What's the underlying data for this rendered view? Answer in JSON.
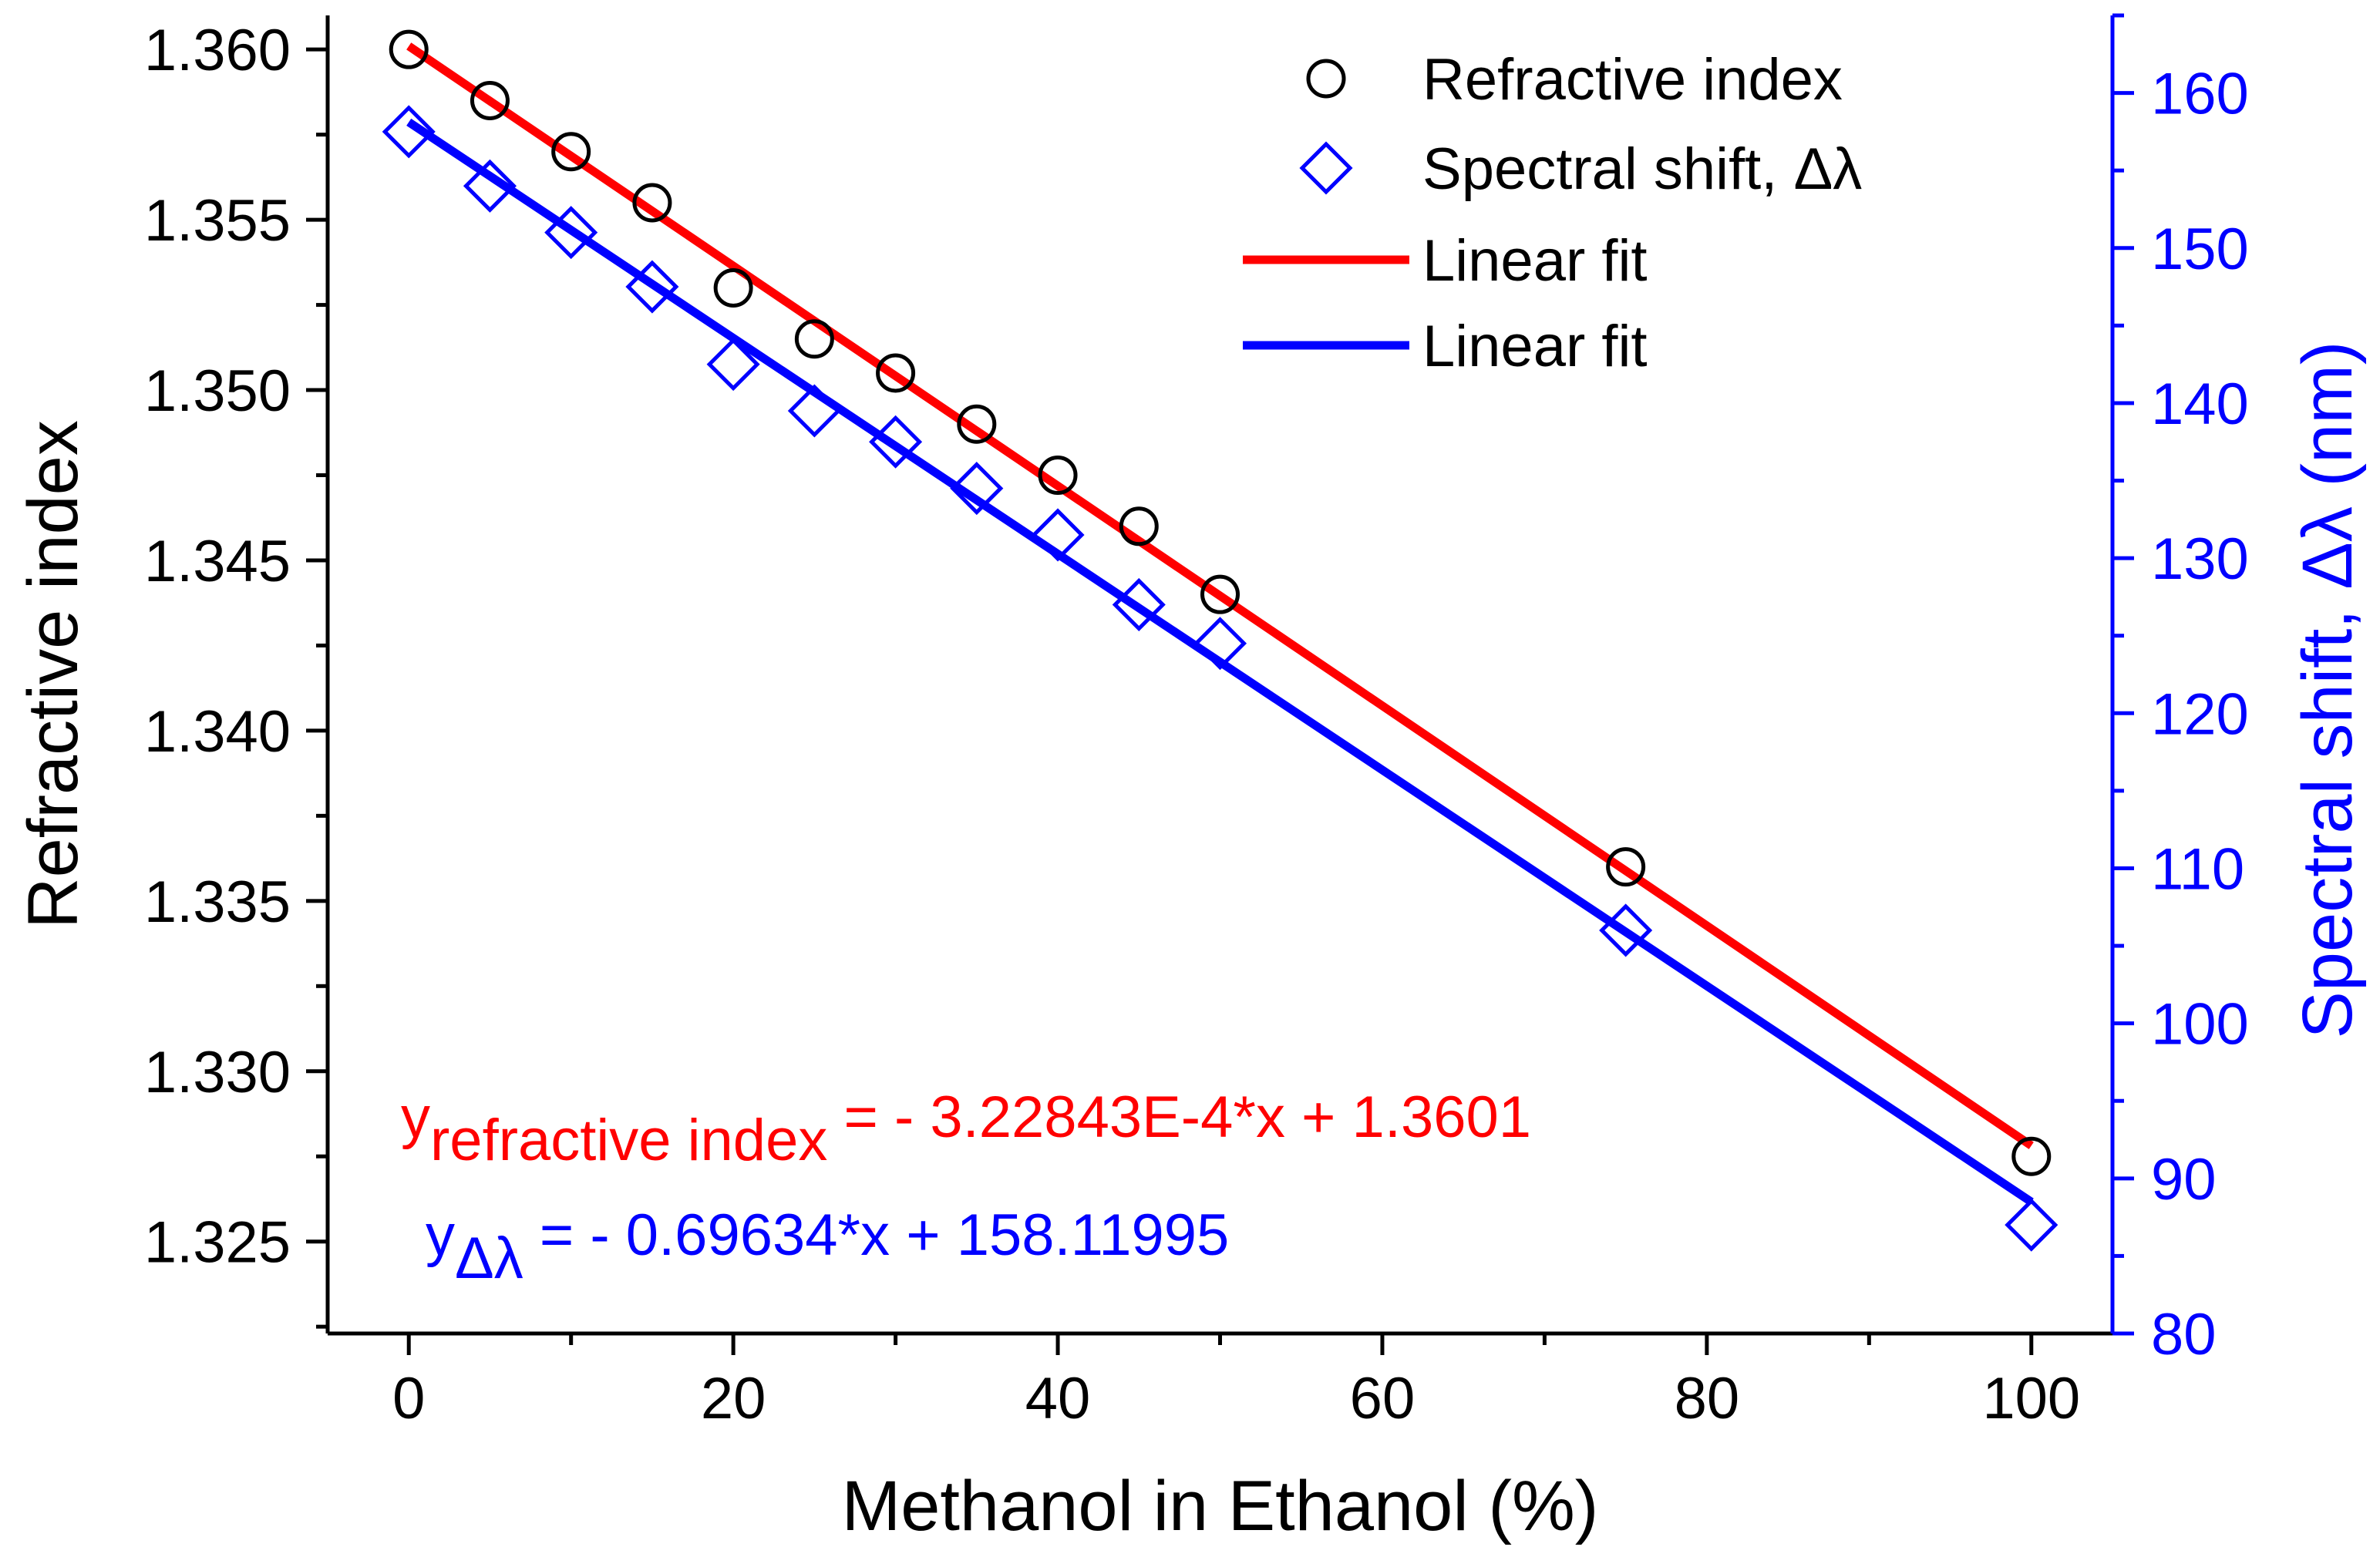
{
  "chart_data": {
    "type": "scatter",
    "xlabel": "Methanol in Ethanol (%)",
    "ylabel_left": "Refractive index",
    "ylabel_right": "Spectral shift, Δλ (nm)",
    "xlim": [
      -5,
      105
    ],
    "ylim_left": [
      1.3223,
      1.361
    ],
    "ylim_right": [
      80,
      165
    ],
    "x_ticks": [
      0,
      20,
      40,
      60,
      80,
      100
    ],
    "x_tick_labels": [
      "0",
      "20",
      "40",
      "60",
      "80",
      "100"
    ],
    "y_left_ticks": [
      1.325,
      1.33,
      1.335,
      1.34,
      1.345,
      1.35,
      1.355,
      1.36
    ],
    "y_left_tick_labels": [
      "1.325",
      "1.330",
      "1.335",
      "1.340",
      "1.345",
      "1.350",
      "1.355",
      "1.360"
    ],
    "y_right_ticks": [
      80,
      90,
      100,
      110,
      120,
      130,
      140,
      150,
      160
    ],
    "y_right_tick_labels": [
      "80",
      "90",
      "100",
      "110",
      "120",
      "130",
      "140",
      "150",
      "160"
    ],
    "grid": false,
    "legend_position": "top-right",
    "series": [
      {
        "name": "Refractive index",
        "axis": "left",
        "marker": "circle",
        "color": "#000000",
        "x": [
          0,
          5,
          10,
          15,
          20,
          25,
          30,
          35,
          40,
          45,
          50,
          75,
          100
        ],
        "y": [
          1.36,
          1.3585,
          1.357,
          1.3555,
          1.353,
          1.3515,
          1.3505,
          1.349,
          1.3475,
          1.346,
          1.344,
          1.336,
          1.3275
        ]
      },
      {
        "name": "Spectral shift, Δλ",
        "axis": "right",
        "marker": "diamond",
        "color": "#0000ff",
        "x": [
          0,
          5,
          10,
          15,
          20,
          25,
          30,
          35,
          40,
          45,
          50,
          75,
          100
        ],
        "y": [
          157.5,
          154.0,
          151.0,
          147.5,
          142.5,
          139.5,
          137.5,
          134.5,
          131.5,
          127.0,
          124.5,
          106.0,
          87.0
        ]
      }
    ],
    "fits": [
      {
        "name": "Linear fit",
        "axis": "left",
        "color": "#ff0000",
        "slope": -0.000322843,
        "intercept": 1.3601,
        "x_range": [
          0,
          100
        ]
      },
      {
        "name": "Linear fit",
        "axis": "right",
        "color": "#0000ff",
        "slope": -0.69634,
        "intercept": 158.11995,
        "x_range": [
          0,
          100
        ]
      }
    ],
    "annotations": [
      {
        "color": "#ff0000",
        "y_symbol": "y",
        "subscript": "refractive index",
        "equation": " = - 3.22843E-4*x + 1.3601"
      },
      {
        "color": "#0000ff",
        "y_symbol": "y",
        "subscript": "Δλ",
        "equation": " = - 0.69634*x + 158.11995"
      }
    ]
  }
}
